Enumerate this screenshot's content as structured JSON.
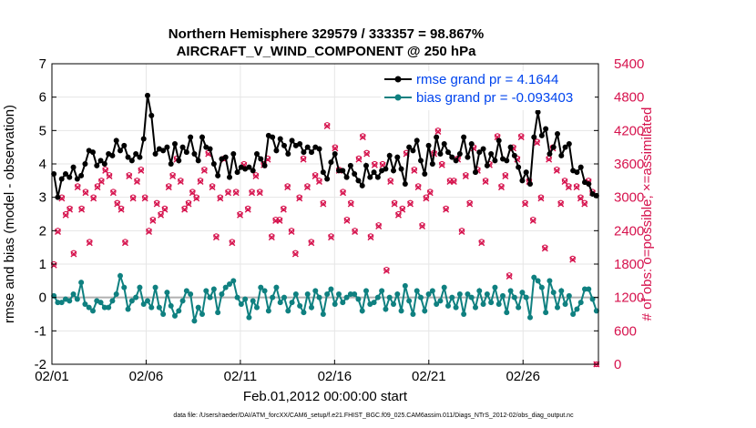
{
  "colors": {
    "rmse": "#000000",
    "bias": "#0f8080",
    "obs": "#d6124d",
    "legend_text": "#0044ee",
    "zero_line": "#b0b0b0",
    "grid": "#e6e6e6"
  },
  "footer": "data file: /Users/raeder/DAI/ATM_forcXX/CAM6_setup/f.e21.FHIST_BGC.f09_025.CAM6assim.011/Diags_NTrS_2012-02/obs_diag_output.nc",
  "chart_data": {
    "type": "line",
    "title": "Northern Hemisphere 329579 / 333357 = 98.867%",
    "subtitle": "AIRCRAFT_V_WIND_COMPONENT @ 250 hPa",
    "xlabel": "Feb.01,2012 00:00:00 start",
    "ylabel": "rmse and bias (model - observation)",
    "y2label": "# of obs: o=possible; ×=assimilated",
    "x_unit": "days since Feb.01,2012 00:00:00",
    "xlim": [
      0,
      29
    ],
    "ylim": [
      -2,
      7
    ],
    "y2lim": [
      0,
      5400
    ],
    "x_ticks": [
      0,
      5,
      10,
      15,
      20,
      25
    ],
    "x_tick_labels": [
      "02/01",
      "02/06",
      "02/11",
      "02/16",
      "02/21",
      "02/26"
    ],
    "y_ticks": [
      -2,
      -1,
      0,
      1,
      2,
      3,
      4,
      5,
      6,
      7
    ],
    "y2_ticks": [
      0,
      600,
      1200,
      1800,
      2400,
      3000,
      3600,
      4200,
      4800,
      5400
    ],
    "grid": true,
    "legend_position": "top-right",
    "zero_line": 0,
    "series": [
      {
        "name": "rmse grand pr = 4.1644",
        "axis": "left",
        "marker": "dot",
        "values": [
          3.7,
          3.0,
          3.55,
          3.7,
          3.6,
          3.9,
          3.55,
          3.65,
          4.0,
          4.4,
          4.35,
          3.95,
          4.1,
          4.0,
          4.3,
          4.25,
          4.7,
          4.4,
          4.55,
          4.2,
          4.1,
          4.3,
          4.2,
          4.75,
          6.05,
          5.45,
          4.3,
          4.45,
          4.4,
          4.5,
          4.0,
          4.6,
          4.1,
          4.5,
          4.35,
          4.8,
          4.3,
          4.1,
          4.8,
          4.5,
          4.45,
          4.0,
          3.65,
          4.15,
          4.2,
          3.6,
          4.3,
          3.75,
          3.9,
          3.85,
          3.9,
          3.8,
          4.3,
          4.15,
          3.95,
          4.85,
          4.8,
          4.4,
          4.75,
          4.55,
          4.3,
          4.7,
          4.55,
          4.6,
          4.35,
          4.5,
          4.35,
          4.5,
          4.45,
          3.75,
          3.55,
          4.05,
          4.3,
          3.8,
          3.8,
          3.6,
          3.95,
          3.7,
          3.5,
          3.35,
          3.95,
          3.6,
          3.75,
          3.6,
          3.8,
          3.85,
          4.25,
          3.8,
          4.2,
          3.85,
          3.4,
          4.5,
          4.4,
          4.7,
          4.1,
          3.7,
          4.55,
          4.0,
          4.8,
          4.3,
          4.6,
          4.35,
          4.2,
          4.1,
          4.3,
          4.8,
          4.2,
          4.6,
          3.75,
          4.35,
          4.45,
          3.95,
          4.3,
          4.1,
          4.7,
          4.15,
          4.1,
          4.5,
          4.25,
          3.9,
          3.5,
          3.75,
          3.4,
          4.8,
          5.55,
          4.85,
          5.05,
          4.3,
          4.5,
          4.9,
          4.25,
          4.5,
          4.6,
          3.8,
          3.75,
          3.9,
          3.45,
          3.4,
          3.1,
          3.05
        ]
      },
      {
        "name": "bias grand pr = -0.093403",
        "axis": "left",
        "marker": "dot",
        "values": [
          0.05,
          -0.15,
          -0.15,
          -0.05,
          -0.1,
          0.1,
          -0.05,
          0.45,
          -0.2,
          -0.3,
          -0.4,
          -0.1,
          -0.15,
          -0.3,
          -0.3,
          -0.1,
          0.1,
          0.65,
          0.3,
          -0.35,
          -0.1,
          0.0,
          0.3,
          -0.2,
          -0.1,
          -0.3,
          0.3,
          -0.3,
          -0.5,
          0.15,
          -0.25,
          -0.55,
          -0.4,
          -0.1,
          0.2,
          0.1,
          -0.7,
          -0.3,
          -0.5,
          0.2,
          0.0,
          0.25,
          -0.45,
          0.1,
          0.3,
          0.4,
          0.5,
          0.0,
          -0.2,
          -0.05,
          -0.6,
          -0.1,
          -0.3,
          0.3,
          0.2,
          -0.4,
          0.0,
          0.3,
          -0.15,
          0.0,
          -0.4,
          -0.15,
          0.1,
          -0.25,
          -0.45,
          0.1,
          -0.3,
          0.2,
          0.0,
          -0.5,
          0.1,
          0.25,
          -0.2,
          0.1,
          -0.15,
          0.0,
          0.1,
          0.1,
          -0.05,
          -0.4,
          0.2,
          -0.2,
          -0.15,
          0.0,
          0.2,
          -0.35,
          0.0,
          -0.2,
          0.1,
          -0.4,
          0.35,
          -0.1,
          -0.5,
          0.2,
          0.0,
          -0.4,
          0.1,
          0.2,
          -0.2,
          -0.1,
          0.3,
          -0.25,
          0.0,
          -0.3,
          0.1,
          -0.5,
          0.1,
          0.0,
          -0.3,
          0.2,
          -0.2,
          0.1,
          -0.15,
          0.3,
          -0.2,
          0.05,
          -0.45,
          0.2,
          0.0,
          -0.3,
          0.15,
          0.0,
          -0.6,
          0.6,
          0.5,
          0.3,
          -0.45,
          0.5,
          0.15,
          -0.3,
          0.2,
          -0.2,
          0.05,
          -0.5,
          -0.35,
          -0.15,
          0.25,
          0.25,
          -0.05,
          -0.4
        ]
      },
      {
        "name": "# of obs possible",
        "axis": "right",
        "marker": "o",
        "values": [
          1800,
          2400,
          3000,
          2700,
          2800,
          2000,
          3200,
          2800,
          3100,
          2200,
          3000,
          3200,
          3300,
          3500,
          3400,
          3100,
          2900,
          2800,
          2200,
          3400,
          3000,
          3300,
          3500,
          3000,
          2400,
          2600,
          2900,
          2700,
          2800,
          3200,
          3400,
          3700,
          3300,
          2800,
          2900,
          3100,
          3000,
          3300,
          3500,
          3800,
          3200,
          2300,
          3000,
          3700,
          3100,
          2200,
          3100,
          2700,
          3600,
          2800,
          3100,
          3400,
          3100,
          3600,
          3700,
          2300,
          2600,
          2600,
          2800,
          3200,
          2400,
          2000,
          3000,
          3700,
          3200,
          2200,
          3400,
          3300,
          2900,
          4300,
          2300,
          3900,
          3500,
          3100,
          2600,
          2900,
          2400,
          3700,
          4100,
          3800,
          2300,
          3600,
          2500,
          3600,
          1700,
          3300,
          2900,
          2700,
          2800,
          3800,
          2900,
          3500,
          3200,
          2500,
          3000,
          3100,
          3800,
          4200,
          3600,
          2800,
          3300,
          3300,
          3700,
          2400,
          3400,
          2900,
          3900,
          3500,
          2200,
          3300,
          3600,
          4800,
          4100,
          3200,
          3400,
          1600,
          3900,
          3700,
          4100,
          2900,
          3300,
          2600,
          4000,
          3000,
          2100,
          3700,
          3900,
          3500,
          2900,
          3300,
          3200,
          1900,
          3200,
          3000,
          2900,
          3300,
          3100,
          0
        ]
      },
      {
        "name": "# of obs assimilated",
        "axis": "right",
        "marker": "x",
        "values": [
          1780,
          2380,
          2980,
          2680,
          2780,
          1980,
          3180,
          2780,
          3080,
          2180,
          2980,
          3180,
          3280,
          3480,
          3380,
          3080,
          2880,
          2780,
          2180,
          3380,
          2980,
          3280,
          3480,
          2980,
          2380,
          2580,
          2880,
          2680,
          2780,
          3180,
          3380,
          3680,
          3280,
          2780,
          2880,
          3080,
          2980,
          3280,
          3480,
          3780,
          3180,
          2280,
          2980,
          3680,
          3080,
          2180,
          3080,
          2680,
          3580,
          2780,
          3080,
          3380,
          3080,
          3580,
          3680,
          2280,
          2580,
          2580,
          2780,
          3180,
          2380,
          1980,
          2980,
          3680,
          3180,
          2180,
          3380,
          3280,
          2880,
          4280,
          2280,
          3880,
          3480,
          3080,
          2580,
          2880,
          2380,
          3680,
          4080,
          3780,
          2280,
          3580,
          2480,
          3580,
          1680,
          3280,
          2880,
          2680,
          2780,
          3780,
          2880,
          3480,
          3180,
          2480,
          2980,
          3080,
          3780,
          4180,
          3580,
          2780,
          3280,
          3280,
          3680,
          2380,
          3380,
          2880,
          3880,
          3480,
          2180,
          3280,
          3580,
          4780,
          4080,
          3180,
          3380,
          1580,
          3880,
          3680,
          4080,
          2880,
          3280,
          2580,
          3980,
          2980,
          2080,
          3680,
          3880,
          3480,
          2880,
          3280,
          3180,
          1880,
          3180,
          2980,
          2880,
          3280,
          3080,
          0
        ]
      }
    ]
  }
}
